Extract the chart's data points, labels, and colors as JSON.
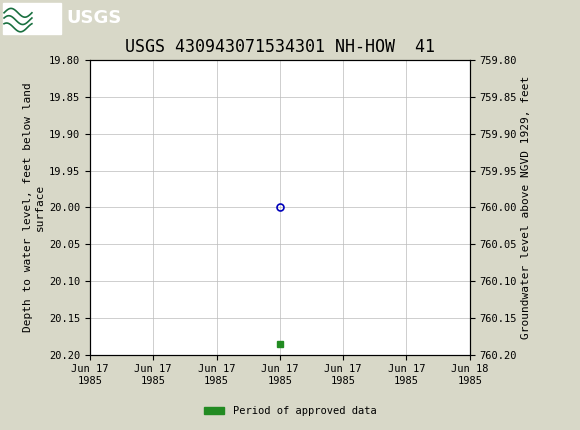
{
  "title": "USGS 430943071534301 NH-HOW  41",
  "header_bg_color": "#1a7040",
  "plot_bg_color": "#ffffff",
  "fig_bg_color": "#d8d8c8",
  "grid_color": "#bbbbbb",
  "ylabel_left": "Depth to water level, feet below land\nsurface",
  "ylabel_right": "Groundwater level above NGVD 1929, feet",
  "ylim_left": [
    19.8,
    20.2
  ],
  "ylim_right_top": 760.2,
  "ylim_right_bottom": 759.8,
  "yticks_left": [
    19.8,
    19.85,
    19.9,
    19.95,
    20.0,
    20.05,
    20.1,
    20.15,
    20.2
  ],
  "yticks_right": [
    760.2,
    760.15,
    760.1,
    760.05,
    760.0,
    759.95,
    759.9,
    759.85,
    759.8
  ],
  "yticks_right_labels": [
    "760.20",
    "760.15",
    "760.10",
    "760.05",
    "760.00",
    "759.95",
    "759.90",
    "759.85",
    "759.80"
  ],
  "data_point_x_hour": 12,
  "data_point_y": 20.0,
  "data_point_color": "#0000bb",
  "data_point_markersize": 5,
  "green_point_x_hour": 12,
  "green_point_y": 20.185,
  "green_point_color": "#228B22",
  "green_point_markersize": 4,
  "legend_label": "Period of approved data",
  "legend_color": "#228B22",
  "xtick_positions_hours": [
    0,
    4,
    8,
    12,
    16,
    20,
    24
  ],
  "xtick_labels": [
    "Jun 17\n1985",
    "Jun 17\n1985",
    "Jun 17\n1985",
    "Jun 17\n1985",
    "Jun 17\n1985",
    "Jun 17\n1985",
    "Jun 18\n1985"
  ],
  "title_fontsize": 12,
  "axis_label_fontsize": 8,
  "tick_fontsize": 7.5,
  "font_family": "monospace"
}
